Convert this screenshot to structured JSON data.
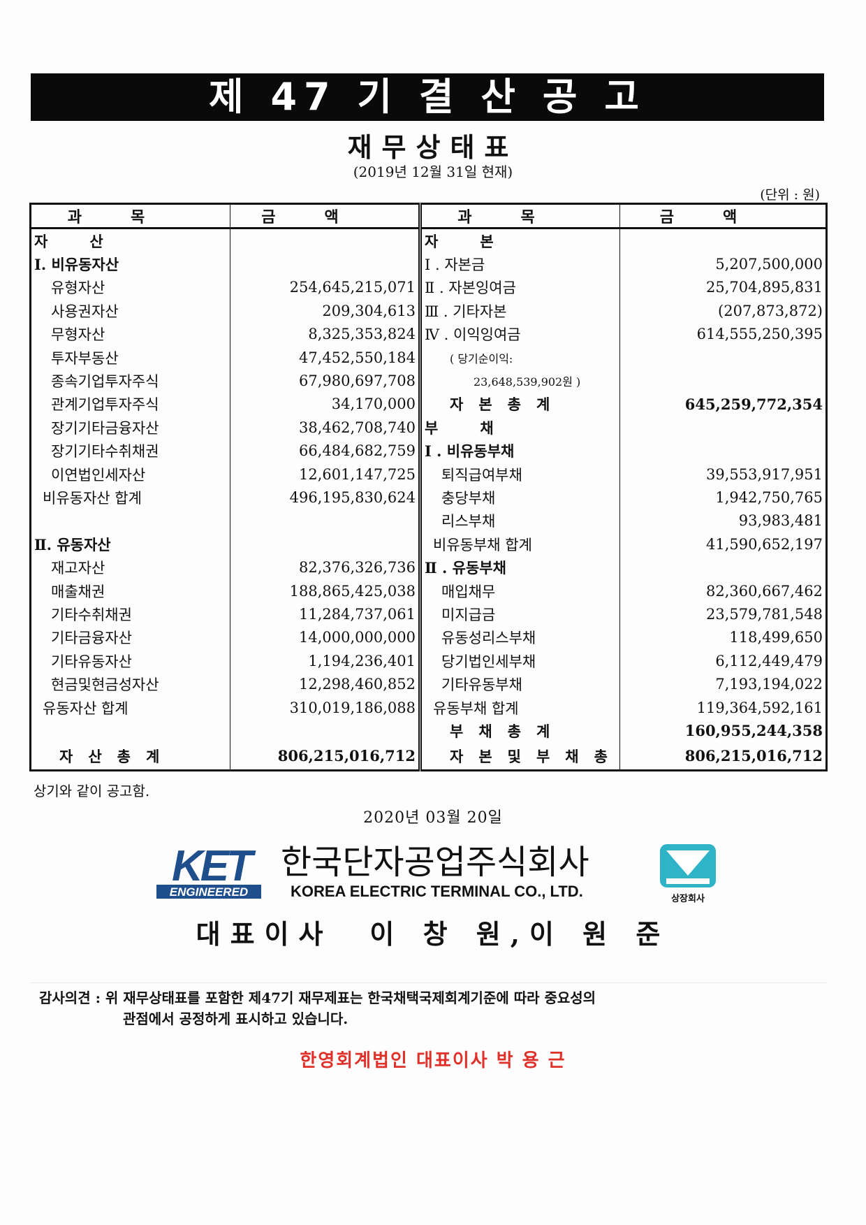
{
  "header": {
    "title": "제 47 기  결 산 공 고",
    "subtitle": "재무상태표",
    "as_of": "(2019년 12월 31일 현재)",
    "unit": "(단위 : 원)"
  },
  "table": {
    "columns": [
      "과목",
      "금액",
      "과목",
      "금액"
    ],
    "rows": [
      {
        "l": "자산",
        "lt": "head",
        "la": "",
        "r": "자본",
        "rt": "head",
        "ra": ""
      },
      {
        "l": "Ⅰ. 비유동자산",
        "lt": "section",
        "la": "",
        "r": "Ⅰ . 자본금",
        "rt": "plain",
        "ra": "5,207,500,000"
      },
      {
        "l": "유형자산",
        "lt": "item",
        "la": "254,645,215,071",
        "r": "Ⅱ . 자본잉여금",
        "rt": "plain",
        "ra": "25,704,895,831"
      },
      {
        "l": "사용권자산",
        "lt": "item",
        "la": "209,304,613",
        "r": "Ⅲ . 기타자본",
        "rt": "plain",
        "ra": "(207,873,872)"
      },
      {
        "l": "무형자산",
        "lt": "item",
        "la": "8,325,353,824",
        "r": "Ⅳ . 이익잉여금",
        "rt": "plain",
        "ra": "614,555,250,395"
      },
      {
        "l": "투자부동산",
        "lt": "item",
        "la": "47,452,550,184",
        "r": "( 당기순이익:",
        "rt": "note",
        "ra": ""
      },
      {
        "l": "종속기업투자주식",
        "lt": "item",
        "la": "67,980,697,708",
        "r": "23,648,539,902원 )",
        "rt": "note2",
        "ra": ""
      },
      {
        "l": "관계기업투자주식",
        "lt": "item",
        "la": "34,170,000",
        "r": "자본총계",
        "rt": "total",
        "ra": "645,259,772,354",
        "rb": true
      },
      {
        "l": "장기기타금융자산",
        "lt": "item",
        "la": "38,462,708,740",
        "r": "부채",
        "rt": "head",
        "ra": ""
      },
      {
        "l": "장기기타수취채권",
        "lt": "item",
        "la": "66,484,682,759",
        "r": "Ⅰ . 비유동부채",
        "rt": "section",
        "ra": ""
      },
      {
        "l": "이연법인세자산",
        "lt": "item",
        "la": "12,601,147,725",
        "r": "퇴직급여부채",
        "rt": "item",
        "ra": "39,553,917,951"
      },
      {
        "l": "비유동자산 합계",
        "lt": "subtotal",
        "la": "496,195,830,624",
        "r": "충당부채",
        "rt": "item",
        "ra": "1,942,750,765"
      },
      {
        "l": "",
        "lt": "plain",
        "la": "",
        "r": "리스부채",
        "rt": "item",
        "ra": "93,983,481"
      },
      {
        "l": "Ⅱ. 유동자산",
        "lt": "section",
        "la": "",
        "r": "비유동부채 합계",
        "rt": "subtotal",
        "ra": "41,590,652,197"
      },
      {
        "l": "재고자산",
        "lt": "item",
        "la": "82,376,326,736",
        "r": "Ⅱ . 유동부채",
        "rt": "section",
        "ra": ""
      },
      {
        "l": "매출채권",
        "lt": "item",
        "la": "188,865,425,038",
        "r": "매입채무",
        "rt": "item",
        "ra": "82,360,667,462"
      },
      {
        "l": "기타수취채권",
        "lt": "item",
        "la": "11,284,737,061",
        "r": "미지급금",
        "rt": "item",
        "ra": "23,579,781,548"
      },
      {
        "l": "기타금융자산",
        "lt": "item",
        "la": "14,000,000,000",
        "r": "유동성리스부채",
        "rt": "item",
        "ra": "118,499,650"
      },
      {
        "l": "기타유동자산",
        "lt": "item",
        "la": "1,194,236,401",
        "r": "당기법인세부채",
        "rt": "item",
        "ra": "6,112,449,479"
      },
      {
        "l": "현금및현금성자산",
        "lt": "item",
        "la": "12,298,460,852",
        "r": "기타유동부채",
        "rt": "item",
        "ra": "7,193,194,022"
      },
      {
        "l": "유동자산 합계",
        "lt": "subtotal",
        "la": "310,019,186,088",
        "r": "유동부채 합계",
        "rt": "subtotal",
        "ra": "119,364,592,161"
      },
      {
        "l": "",
        "lt": "plain",
        "la": "",
        "r": "부채총계",
        "rt": "total",
        "ra": "160,955,244,358",
        "rb": true
      },
      {
        "l": "자산총계",
        "lt": "total",
        "la": "806,215,016,712",
        "lb": true,
        "r": "자본및부채총계",
        "rt": "total",
        "ra": "806,215,016,712",
        "rb": true
      }
    ]
  },
  "footer": {
    "closing": "상기와 같이 공고함.",
    "date": "2020년  03월  20일",
    "logo_text": "KET",
    "logo_sub": "ENGINEERED",
    "company_ko": "한국단자공업주식회사",
    "company_en": "KOREA ELECTRIC TERMINAL CO., LTD.",
    "listed_mark": "상장회사",
    "ceo_title": "대표이사",
    "ceo_names": "이 창 원,이 원 준",
    "audit_line1": "감사의견 : 위 재무상태표를 포함한 제47기 재무제표는 한국채택국제회계기준에 따라 중요성의",
    "audit_line2": "관점에서 공정하게 표시하고 있습니다.",
    "auditor": "한영회계법인  대표이사  박 용 근"
  },
  "colors": {
    "logo_blue": "#1f4e8c",
    "mark_teal": "#2fb3c6",
    "auditor_red": "#e0302a"
  }
}
